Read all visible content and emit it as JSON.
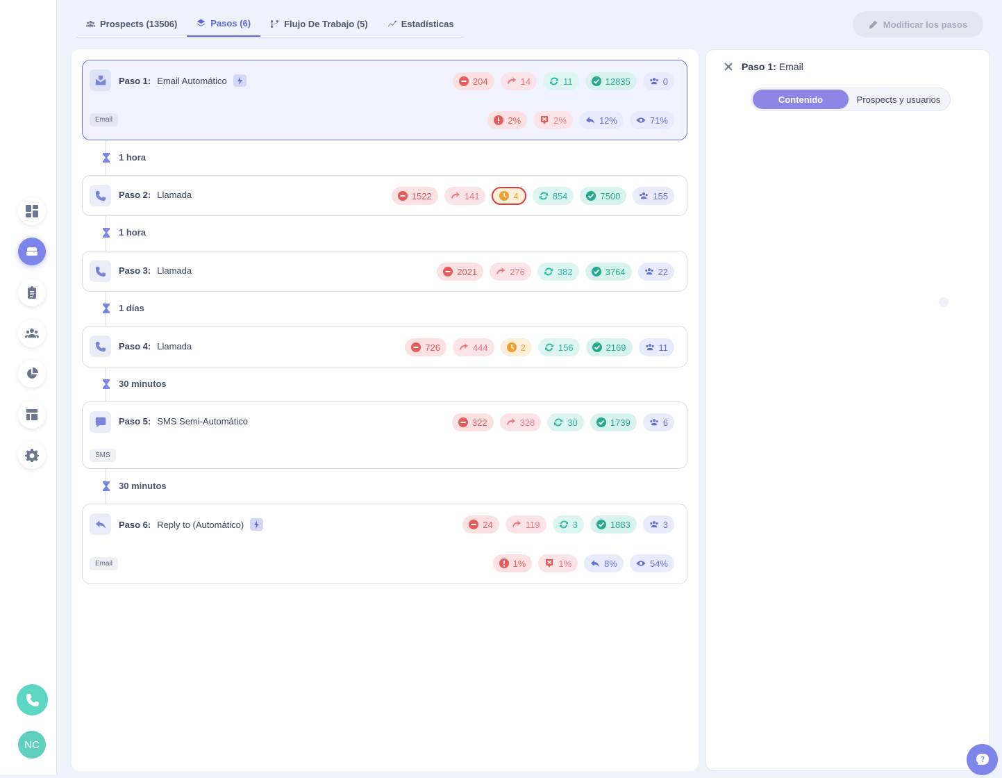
{
  "tabs": [
    {
      "label": "Prospects (13506)",
      "icon": "users-icon"
    },
    {
      "label": "Pasos (6)",
      "icon": "layers-icon"
    },
    {
      "label": "Flujo De Trabajo (5)",
      "icon": "workflow-icon"
    },
    {
      "label": "Estadísticas",
      "icon": "trend-icon"
    }
  ],
  "toolbar": {
    "modify_label": "Modificar los pasos"
  },
  "steps": [
    {
      "num": "Paso 1:",
      "name": "Email Automático",
      "badge": "Email",
      "stats": [
        "204",
        "14",
        "11",
        "12835",
        "0"
      ],
      "rates": [
        "2%",
        "2%",
        "12%",
        "71%"
      ]
    },
    {
      "num": "Paso 2:",
      "name": "Llamada",
      "stats": [
        "1522",
        "141",
        "4",
        "854",
        "7500",
        "155"
      ]
    },
    {
      "num": "Paso 3:",
      "name": "Llamada",
      "stats": [
        "2021",
        "276",
        "382",
        "3764",
        "22"
      ]
    },
    {
      "num": "Paso 4:",
      "name": "Llamada",
      "stats": [
        "726",
        "444",
        "2",
        "156",
        "2169",
        "11"
      ]
    },
    {
      "num": "Paso 5:",
      "name": "SMS Semi-Automático",
      "badge": "SMS",
      "stats": [
        "322",
        "328",
        "30",
        "1739",
        "6"
      ]
    },
    {
      "num": "Paso 6:",
      "name": "Reply to (Automático)",
      "badge": "Email",
      "stats": [
        "24",
        "119",
        "3",
        "1883",
        "3"
      ],
      "rates": [
        "1%",
        "1%",
        "8%",
        "54%"
      ]
    }
  ],
  "delays": [
    "1 hora",
    "1 hora",
    "1 días",
    "30 minutos",
    "30 minutos"
  ],
  "panel": {
    "step_label": "Paso 1:",
    "step_type": "Email",
    "segments": [
      "Contenido",
      "Prospects y usuarios"
    ]
  },
  "user": {
    "initials": "NC"
  },
  "colors": {
    "accent": "#5d67d8",
    "active_nav": "#7b86e8",
    "call_button": "#5ed6c4",
    "selected_border": "#6b75e0"
  }
}
